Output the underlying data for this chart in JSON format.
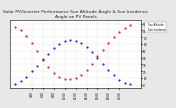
{
  "title": "Solar PV/Inverter Performance Sun Altitude Angle & Sun Incidence Angle on PV Panels",
  "title_fontsize": 3.2,
  "bg_color": "#e8e8e8",
  "plot_bg": "#ffffff",
  "grid_color": "#bbbbbb",
  "legend_labels": [
    "Sun Altitude",
    "Sun Incidence"
  ],
  "legend_colors": [
    "#0000dd",
    "#dd0000"
  ],
  "ylim": [
    -5,
    95
  ],
  "xlim": [
    0,
    96
  ],
  "xtick_labels": [
    "4:00",
    "6:00",
    "8:00",
    "10:00",
    "12:00",
    "14:00",
    "16:00",
    "18:00",
    "20:00"
  ],
  "xtick_positions": [
    16,
    24,
    32,
    40,
    48,
    56,
    64,
    72,
    80
  ],
  "ytick_positions": [
    0,
    10,
    20,
    30,
    40,
    50,
    60,
    70,
    80,
    90
  ],
  "altitude_x": [
    4,
    8,
    12,
    16,
    20,
    24,
    28,
    32,
    36,
    40,
    44,
    48,
    52,
    56,
    60,
    64,
    68,
    72,
    76,
    80,
    84,
    88
  ],
  "altitude_y": [
    2,
    6,
    12,
    20,
    28,
    37,
    46,
    54,
    60,
    64,
    66,
    65,
    62,
    56,
    49,
    40,
    31,
    22,
    14,
    7,
    3,
    1
  ],
  "incidence_x": [
    4,
    8,
    12,
    16,
    20,
    24,
    28,
    32,
    36,
    40,
    44,
    48,
    52,
    56,
    60,
    64,
    68,
    72,
    76,
    80,
    84,
    88
  ],
  "incidence_y": [
    85,
    80,
    72,
    62,
    50,
    38,
    27,
    18,
    12,
    9,
    8,
    10,
    15,
    22,
    31,
    42,
    52,
    62,
    70,
    78,
    84,
    88
  ]
}
